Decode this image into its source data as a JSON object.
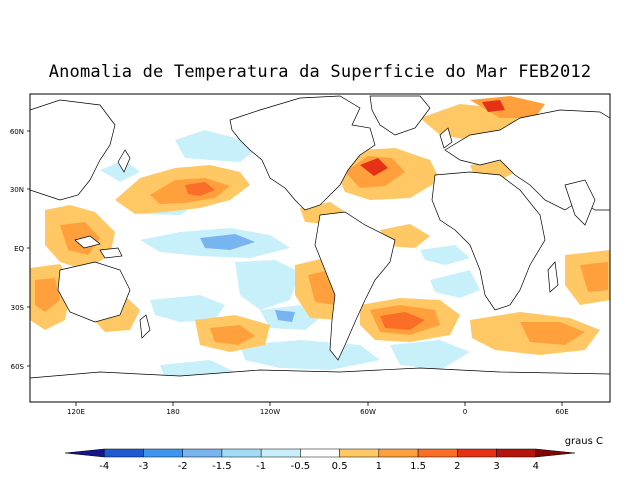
{
  "title": "Anomalia de Temperatura da Superficie do Mar FEB2012",
  "units": "graus C",
  "lat_ticks": [
    "60N",
    "30N",
    "EQ",
    "30S",
    "60S"
  ],
  "lon_ticks": [
    "120E",
    "180",
    "120W",
    "60W",
    "0",
    "60E"
  ],
  "legend": {
    "labels": [
      "-4",
      "-3",
      "-2",
      "-1.5",
      "-1",
      "-0.5",
      "0.5",
      "1",
      "1.5",
      "2",
      "3",
      "4"
    ],
    "colors": [
      "#14148c",
      "#1e5ad2",
      "#3c96f0",
      "#78b4f0",
      "#a0dcf5",
      "#c8f0fa",
      "#ffffff",
      "#ffc864",
      "#ffa03c",
      "#fa6e28",
      "#e63214",
      "#b4140a",
      "#820505"
    ]
  },
  "anomaly_colors": {
    "cold_weak": "#c8f0fa",
    "cold_mid": "#a0dcf5",
    "cold_strong": "#78b4f0",
    "cold_extreme": "#3c96f0",
    "warm_weak": "#ffc864",
    "warm_mid": "#ffa03c",
    "warm_strong": "#fa6e28",
    "warm_extreme": "#e63214",
    "warm_max": "#b4140a"
  }
}
